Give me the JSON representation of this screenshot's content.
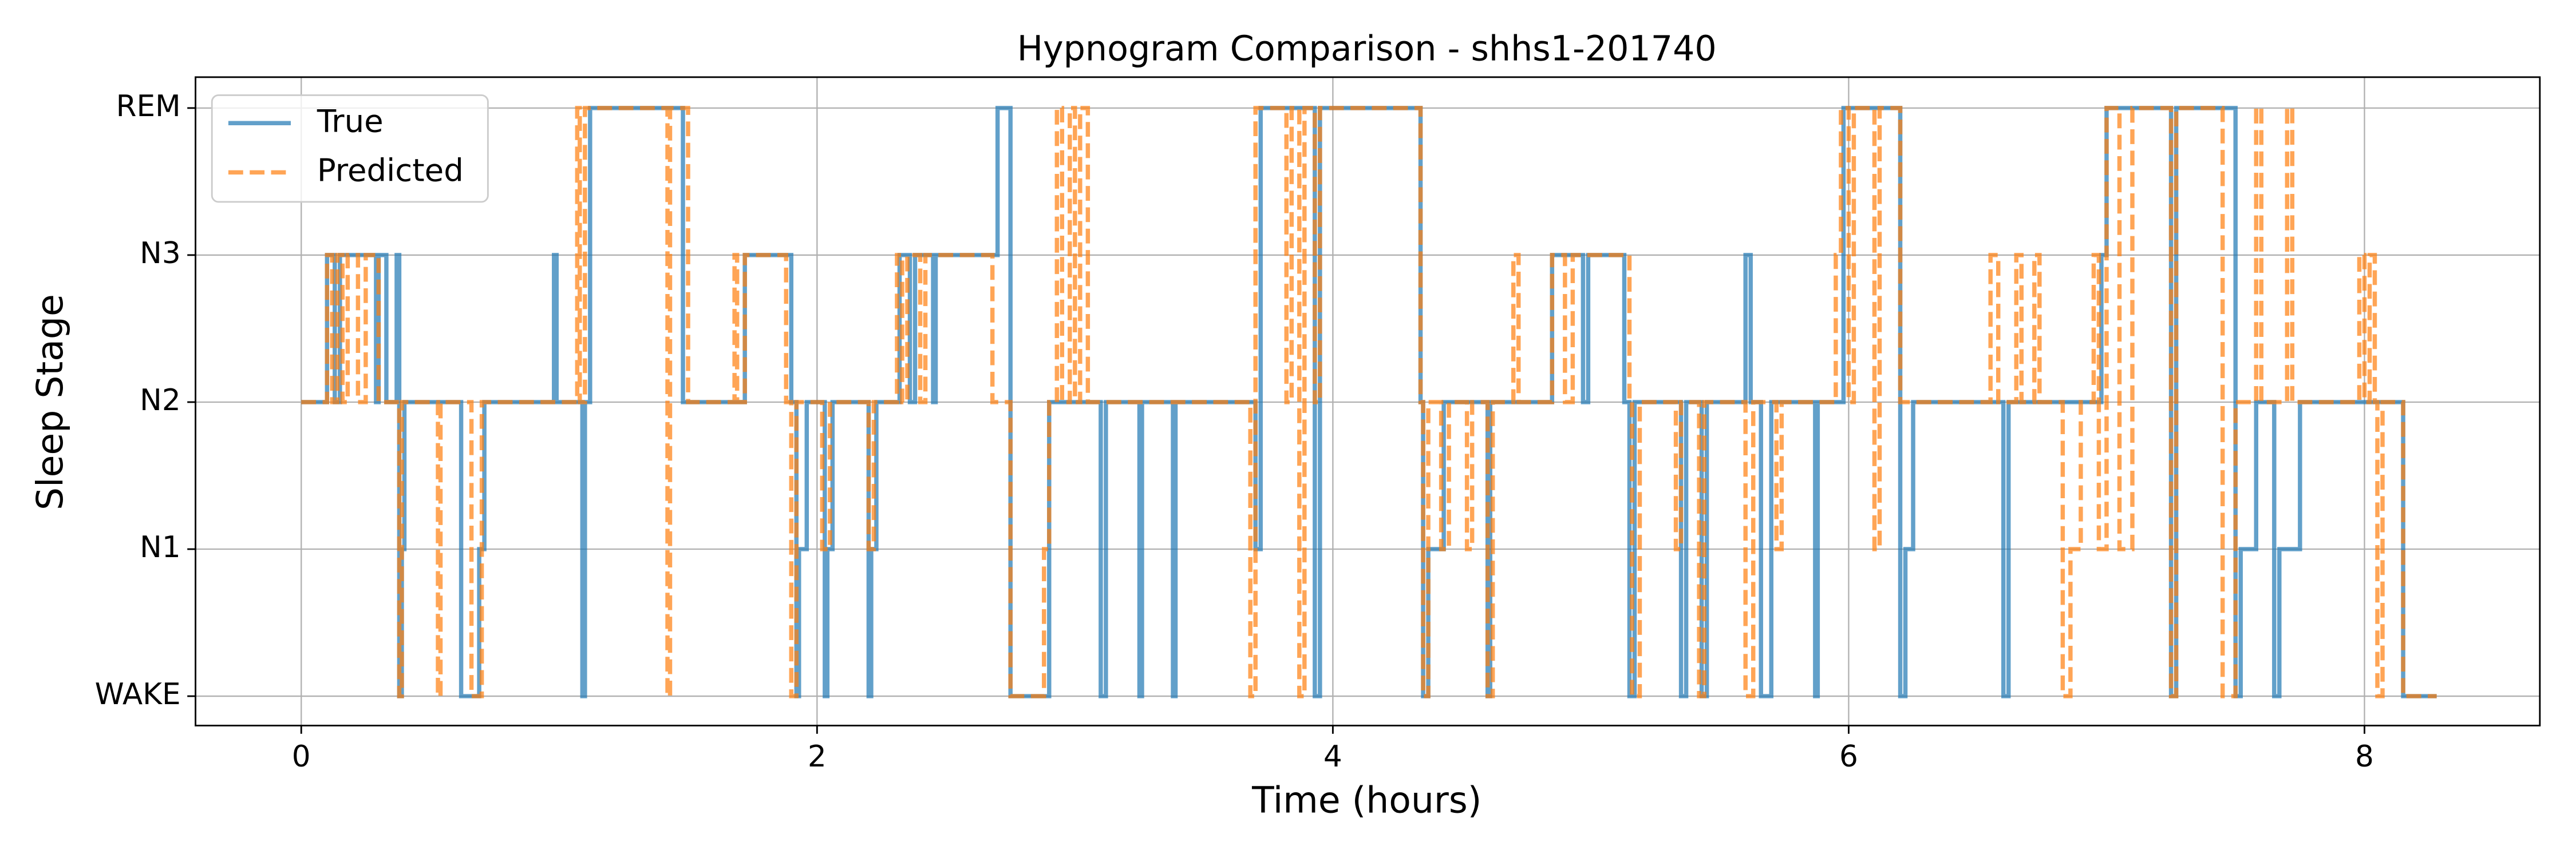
{
  "chart_data": {
    "type": "line",
    "drawstyle": "steps-post",
    "title": "Hypnogram Comparison - shhs1-201740",
    "x_label": "Time (hours)",
    "y_label": "Sleep Stage",
    "xlim": [
      -0.41,
      8.68
    ],
    "ylim": [
      -0.2,
      4.21
    ],
    "xticks": [
      0,
      2,
      4,
      6,
      8
    ],
    "yticks": [
      {
        "value": 0,
        "label": "WAKE"
      },
      {
        "value": 1,
        "label": "N1"
      },
      {
        "value": 2,
        "label": "N2"
      },
      {
        "value": 3,
        "label": "N3"
      },
      {
        "value": 4,
        "label": "REM"
      }
    ],
    "grid": true,
    "legend": "upper left",
    "series": [
      {
        "name": "True",
        "color": "#1f77b4",
        "linestyle": "solid",
        "x": [
          0,
          0.1,
          0.13,
          0.15,
          0.29,
          0.3,
          0.33,
          0.37,
          0.38,
          0.39,
          0.4,
          0.62,
          0.69,
          0.71,
          0.98,
          0.99,
          1.09,
          1.1,
          1.12,
          1.48,
          1.72,
          1.9,
          1.92,
          1.93,
          1.96,
          2.03,
          2.04,
          2.06,
          2.2,
          2.21,
          2.23,
          2.32,
          2.36,
          2.38,
          2.45,
          2.46,
          2.7,
          2.75,
          2.9,
          3.1,
          3.12,
          3.25,
          3.26,
          3.38,
          3.39,
          3.7,
          3.72,
          3.93,
          3.95,
          4.34,
          4.35,
          4.37,
          4.43,
          4.6,
          4.61,
          4.85,
          4.97,
          4.99,
          5.13,
          5.15,
          5.17,
          5.35,
          5.37,
          5.43,
          5.45,
          5.6,
          5.62,
          5.66,
          5.7,
          5.87,
          5.88,
          5.98,
          6.2,
          6.22,
          6.25,
          6.6,
          6.62,
          6.98,
          7.0,
          7.25,
          7.27,
          7.5,
          7.52,
          7.58,
          7.65,
          7.67,
          7.75,
          8.15,
          8.28
        ],
        "values": [
          2,
          3,
          2,
          3,
          2,
          3,
          2,
          3,
          0,
          1,
          2,
          0,
          1,
          2,
          3,
          2,
          0,
          2,
          4,
          2,
          3,
          2,
          0,
          1,
          2,
          0,
          1,
          2,
          0,
          1,
          2,
          3,
          2,
          3,
          2,
          3,
          4,
          0,
          2,
          0,
          2,
          0,
          2,
          0,
          2,
          1,
          4,
          0,
          4,
          2,
          0,
          1,
          2,
          0,
          2,
          3,
          2,
          3,
          2,
          0,
          2,
          0,
          2,
          0,
          2,
          3,
          2,
          0,
          2,
          0,
          2,
          4,
          0,
          1,
          2,
          0,
          2,
          3,
          4,
          0,
          4,
          0,
          1,
          2,
          0,
          1,
          2,
          0,
          0
        ]
      },
      {
        "name": "Predicted",
        "color": "#ff7f0e",
        "linestyle": "dashed",
        "x": [
          0,
          0.1,
          0.12,
          0.14,
          0.16,
          0.18,
          0.22,
          0.25,
          0.3,
          0.38,
          0.39,
          0.53,
          0.54,
          0.66,
          0.7,
          1.07,
          1.08,
          1.1,
          1.42,
          1.43,
          1.5,
          1.68,
          1.69,
          1.72,
          1.88,
          1.9,
          1.92,
          2.02,
          2.05,
          2.2,
          2.22,
          2.31,
          2.33,
          2.35,
          2.4,
          2.42,
          2.68,
          2.75,
          2.88,
          2.9,
          2.93,
          2.95,
          2.98,
          3.0,
          3.02,
          3.05,
          3.68,
          3.7,
          3.82,
          3.84,
          3.87,
          3.89,
          3.93,
          3.95,
          4.34,
          4.35,
          4.37,
          4.42,
          4.45,
          4.52,
          4.54,
          4.6,
          4.62,
          4.7,
          4.72,
          4.85,
          4.9,
          4.93,
          5.15,
          5.16,
          5.19,
          5.33,
          5.35,
          5.42,
          5.44,
          5.6,
          5.63,
          5.72,
          5.74,
          5.95,
          5.97,
          6.0,
          6.02,
          6.1,
          6.12,
          6.2,
          6.55,
          6.58,
          6.65,
          6.67,
          6.72,
          6.74,
          6.83,
          6.86,
          6.9,
          6.95,
          6.97,
          7.0,
          7.05,
          7.1,
          7.25,
          7.27,
          7.45,
          7.5,
          7.58,
          7.6,
          7.7,
          7.72,
          7.98,
          8.0,
          8.02,
          8.04,
          8.05,
          8.07,
          8.15,
          8.28
        ],
        "values": [
          2,
          3,
          2,
          3,
          2,
          3,
          2,
          3,
          2,
          0,
          2,
          0,
          2,
          0,
          2,
          4,
          2,
          4,
          0,
          4,
          2,
          3,
          2,
          3,
          2,
          0,
          2,
          1,
          2,
          1,
          2,
          3,
          2,
          3,
          2,
          3,
          2,
          0,
          1,
          2,
          4,
          2,
          4,
          2,
          4,
          2,
          0,
          4,
          2,
          4,
          0,
          4,
          2,
          4,
          2,
          0,
          2,
          1,
          2,
          1,
          2,
          0,
          2,
          3,
          2,
          3,
          2,
          3,
          2,
          0,
          2,
          1,
          2,
          0,
          2,
          0,
          2,
          1,
          2,
          3,
          4,
          2,
          4,
          1,
          4,
          2,
          3,
          2,
          3,
          2,
          3,
          2,
          0,
          1,
          2,
          3,
          1,
          4,
          1,
          4,
          0,
          4,
          0,
          2,
          4,
          2,
          4,
          2,
          3,
          2,
          3,
          2,
          0,
          2,
          0,
          0
        ]
      }
    ]
  }
}
